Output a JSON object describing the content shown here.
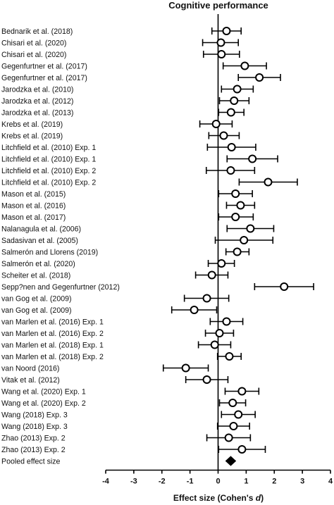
{
  "chart_data": {
    "type": "forest",
    "title": "Cognitive performance",
    "xlabel": "Effect size (Cohen's d)",
    "xlim": [
      -4,
      4
    ],
    "xticks": [
      "-4",
      "-3",
      "-2",
      "-1",
      "0",
      "1",
      "2",
      "3",
      "4"
    ],
    "grid": false,
    "studies": [
      {
        "label": "Bednarik et al. (2018)",
        "d": 0.3,
        "ci": [
          -0.22,
          0.82
        ]
      },
      {
        "label": "Chisari et al. (2020)",
        "d": 0.1,
        "ci": [
          -0.55,
          0.72
        ]
      },
      {
        "label": "Chisari et al. (2020)",
        "d": 0.12,
        "ci": [
          -0.52,
          0.76
        ]
      },
      {
        "label": "Gegenfurtner et al. (2017)",
        "d": 0.95,
        "ci": [
          0.18,
          1.72
        ]
      },
      {
        "label": "Gegenfurtner et al. (2017)",
        "d": 1.47,
        "ci": [
          0.72,
          2.22
        ]
      },
      {
        "label": "Jarodzka et al. (2010)",
        "d": 0.68,
        "ci": [
          0.12,
          1.25
        ]
      },
      {
        "label": "Jarodzka et al. (2012)",
        "d": 0.57,
        "ci": [
          0.05,
          1.1
        ]
      },
      {
        "label": "Jarodzka et al. (2013)",
        "d": 0.46,
        "ci": [
          0.02,
          0.92
        ]
      },
      {
        "label": "Krebs et al. (2019)",
        "d": -0.07,
        "ci": [
          -0.65,
          0.5
        ]
      },
      {
        "label": "Krebs et al. (2019)",
        "d": 0.2,
        "ci": [
          -0.33,
          0.75
        ]
      },
      {
        "label": "Litchfield et al. (2010) Exp. 1",
        "d": 0.48,
        "ci": [
          -0.38,
          1.34
        ]
      },
      {
        "label": "Litchfield et al. (2010) Exp. 1",
        "d": 1.22,
        "ci": [
          0.32,
          2.12
        ]
      },
      {
        "label": "Litchfield et al. (2010) Exp. 2",
        "d": 0.45,
        "ci": [
          -0.42,
          1.3
        ]
      },
      {
        "label": "Litchfield et al. (2010) Exp. 2",
        "d": 1.78,
        "ci": [
          0.75,
          2.82
        ]
      },
      {
        "label": "Mason et al. (2015)",
        "d": 0.62,
        "ci": [
          0.02,
          1.22
        ]
      },
      {
        "label": "Mason et al. (2016)",
        "d": 0.8,
        "ci": [
          0.3,
          1.3
        ]
      },
      {
        "label": "Mason et al. (2017)",
        "d": 0.62,
        "ci": [
          0.02,
          1.25
        ]
      },
      {
        "label": "Nalanagula et al. (2006)",
        "d": 1.15,
        "ci": [
          0.32,
          1.98
        ]
      },
      {
        "label": "Sadasivan et al. (2005)",
        "d": 0.92,
        "ci": [
          -0.1,
          1.95
        ]
      },
      {
        "label": "Salmerón and Llorens (2019)",
        "d": 0.68,
        "ci": [
          0.28,
          1.1
        ]
      },
      {
        "label": "Salmerón et al. (2020)",
        "d": 0.12,
        "ci": [
          -0.35,
          0.58
        ]
      },
      {
        "label": "Scheiter et al. (2018)",
        "d": -0.22,
        "ci": [
          -0.8,
          0.35
        ]
      },
      {
        "label": "Sepp?nen and Gegenfurtner (2012)",
        "d": 2.35,
        "ci": [
          1.3,
          3.4
        ]
      },
      {
        "label": "van Gog et al. (2009)",
        "d": -0.4,
        "ci": [
          -1.2,
          0.38
        ]
      },
      {
        "label": "van Gog et al. (2009)",
        "d": -0.85,
        "ci": [
          -1.65,
          -0.05
        ]
      },
      {
        "label": "van Marlen et al. (2016) Exp. 1",
        "d": 0.3,
        "ci": [
          -0.28,
          0.88
        ]
      },
      {
        "label": "van Marlen et al. (2016) Exp. 2",
        "d": 0.05,
        "ci": [
          -0.45,
          0.55
        ]
      },
      {
        "label": "van Marlen et al. (2018) Exp. 1",
        "d": -0.12,
        "ci": [
          -0.7,
          0.45
        ]
      },
      {
        "label": "van Marlen et al. (2018) Exp. 2",
        "d": 0.4,
        "ci": [
          -0.02,
          0.82
        ]
      },
      {
        "label": "van Noord (2016)",
        "d": -1.15,
        "ci": [
          -1.95,
          -0.35
        ]
      },
      {
        "label": "Vitak et al. (2012)",
        "d": -0.4,
        "ci": [
          -1.15,
          0.35
        ]
      },
      {
        "label": "Wang et al. (2020) Exp. 1",
        "d": 0.85,
        "ci": [
          0.25,
          1.45
        ]
      },
      {
        "label": "Wang et al. (2020) Exp. 2",
        "d": 0.52,
        "ci": [
          0.05,
          0.98
        ]
      },
      {
        "label": "Wang (2018) Exp. 3",
        "d": 0.72,
        "ci": [
          0.12,
          1.32
        ]
      },
      {
        "label": "Wang (2018) Exp. 3",
        "d": 0.55,
        "ci": [
          -0.02,
          1.12
        ]
      },
      {
        "label": "Zhao (2013) Exp. 2",
        "d": 0.38,
        "ci": [
          -0.4,
          1.15
        ]
      },
      {
        "label": "Zhao (2013) Exp. 2",
        "d": 0.85,
        "ci": [
          0.02,
          1.68
        ]
      }
    ],
    "pooled": {
      "label": "Pooled effect size",
      "d": 0.45,
      "ci": [
        0.3,
        0.6
      ]
    }
  }
}
